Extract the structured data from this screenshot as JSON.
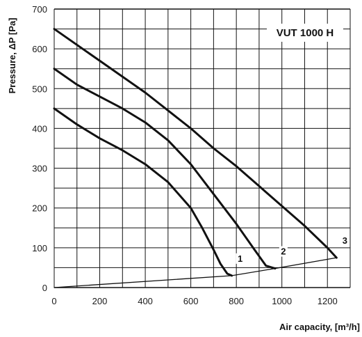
{
  "chart_data": {
    "type": "line",
    "title": "VUT 1000 H",
    "xlabel": "Air capacity, [m³/h]",
    "ylabel": "Pressure, ΔP [Pa]",
    "xlim": [
      0,
      1300
    ],
    "ylim": [
      0,
      700
    ],
    "xticks": [
      "0",
      "200",
      "400",
      "600",
      "800",
      "1000",
      "1200"
    ],
    "yticks": [
      "0",
      "100",
      "200",
      "300",
      "400",
      "500",
      "600",
      "700"
    ],
    "grid": true,
    "series": [
      {
        "name": "1",
        "x": [
          0,
          100,
          200,
          300,
          400,
          500,
          600,
          650,
          700,
          730,
          760,
          780
        ],
        "y": [
          450,
          410,
          375,
          345,
          310,
          265,
          200,
          150,
          95,
          60,
          35,
          30
        ]
      },
      {
        "name": "2",
        "x": [
          0,
          100,
          200,
          300,
          400,
          500,
          600,
          700,
          800,
          880,
          930,
          970
        ],
        "y": [
          550,
          510,
          480,
          450,
          415,
          370,
          310,
          235,
          160,
          95,
          55,
          48
        ]
      },
      {
        "name": "3",
        "x": [
          0,
          100,
          200,
          300,
          400,
          500,
          600,
          700,
          800,
          900,
          1000,
          1100,
          1200,
          1240
        ],
        "y": [
          650,
          610,
          570,
          530,
          490,
          445,
          400,
          350,
          305,
          255,
          205,
          155,
          100,
          75
        ]
      },
      {
        "name": "",
        "x": [
          0,
          780,
          970,
          1240
        ],
        "y": [
          0,
          30,
          48,
          75
        ]
      }
    ]
  }
}
